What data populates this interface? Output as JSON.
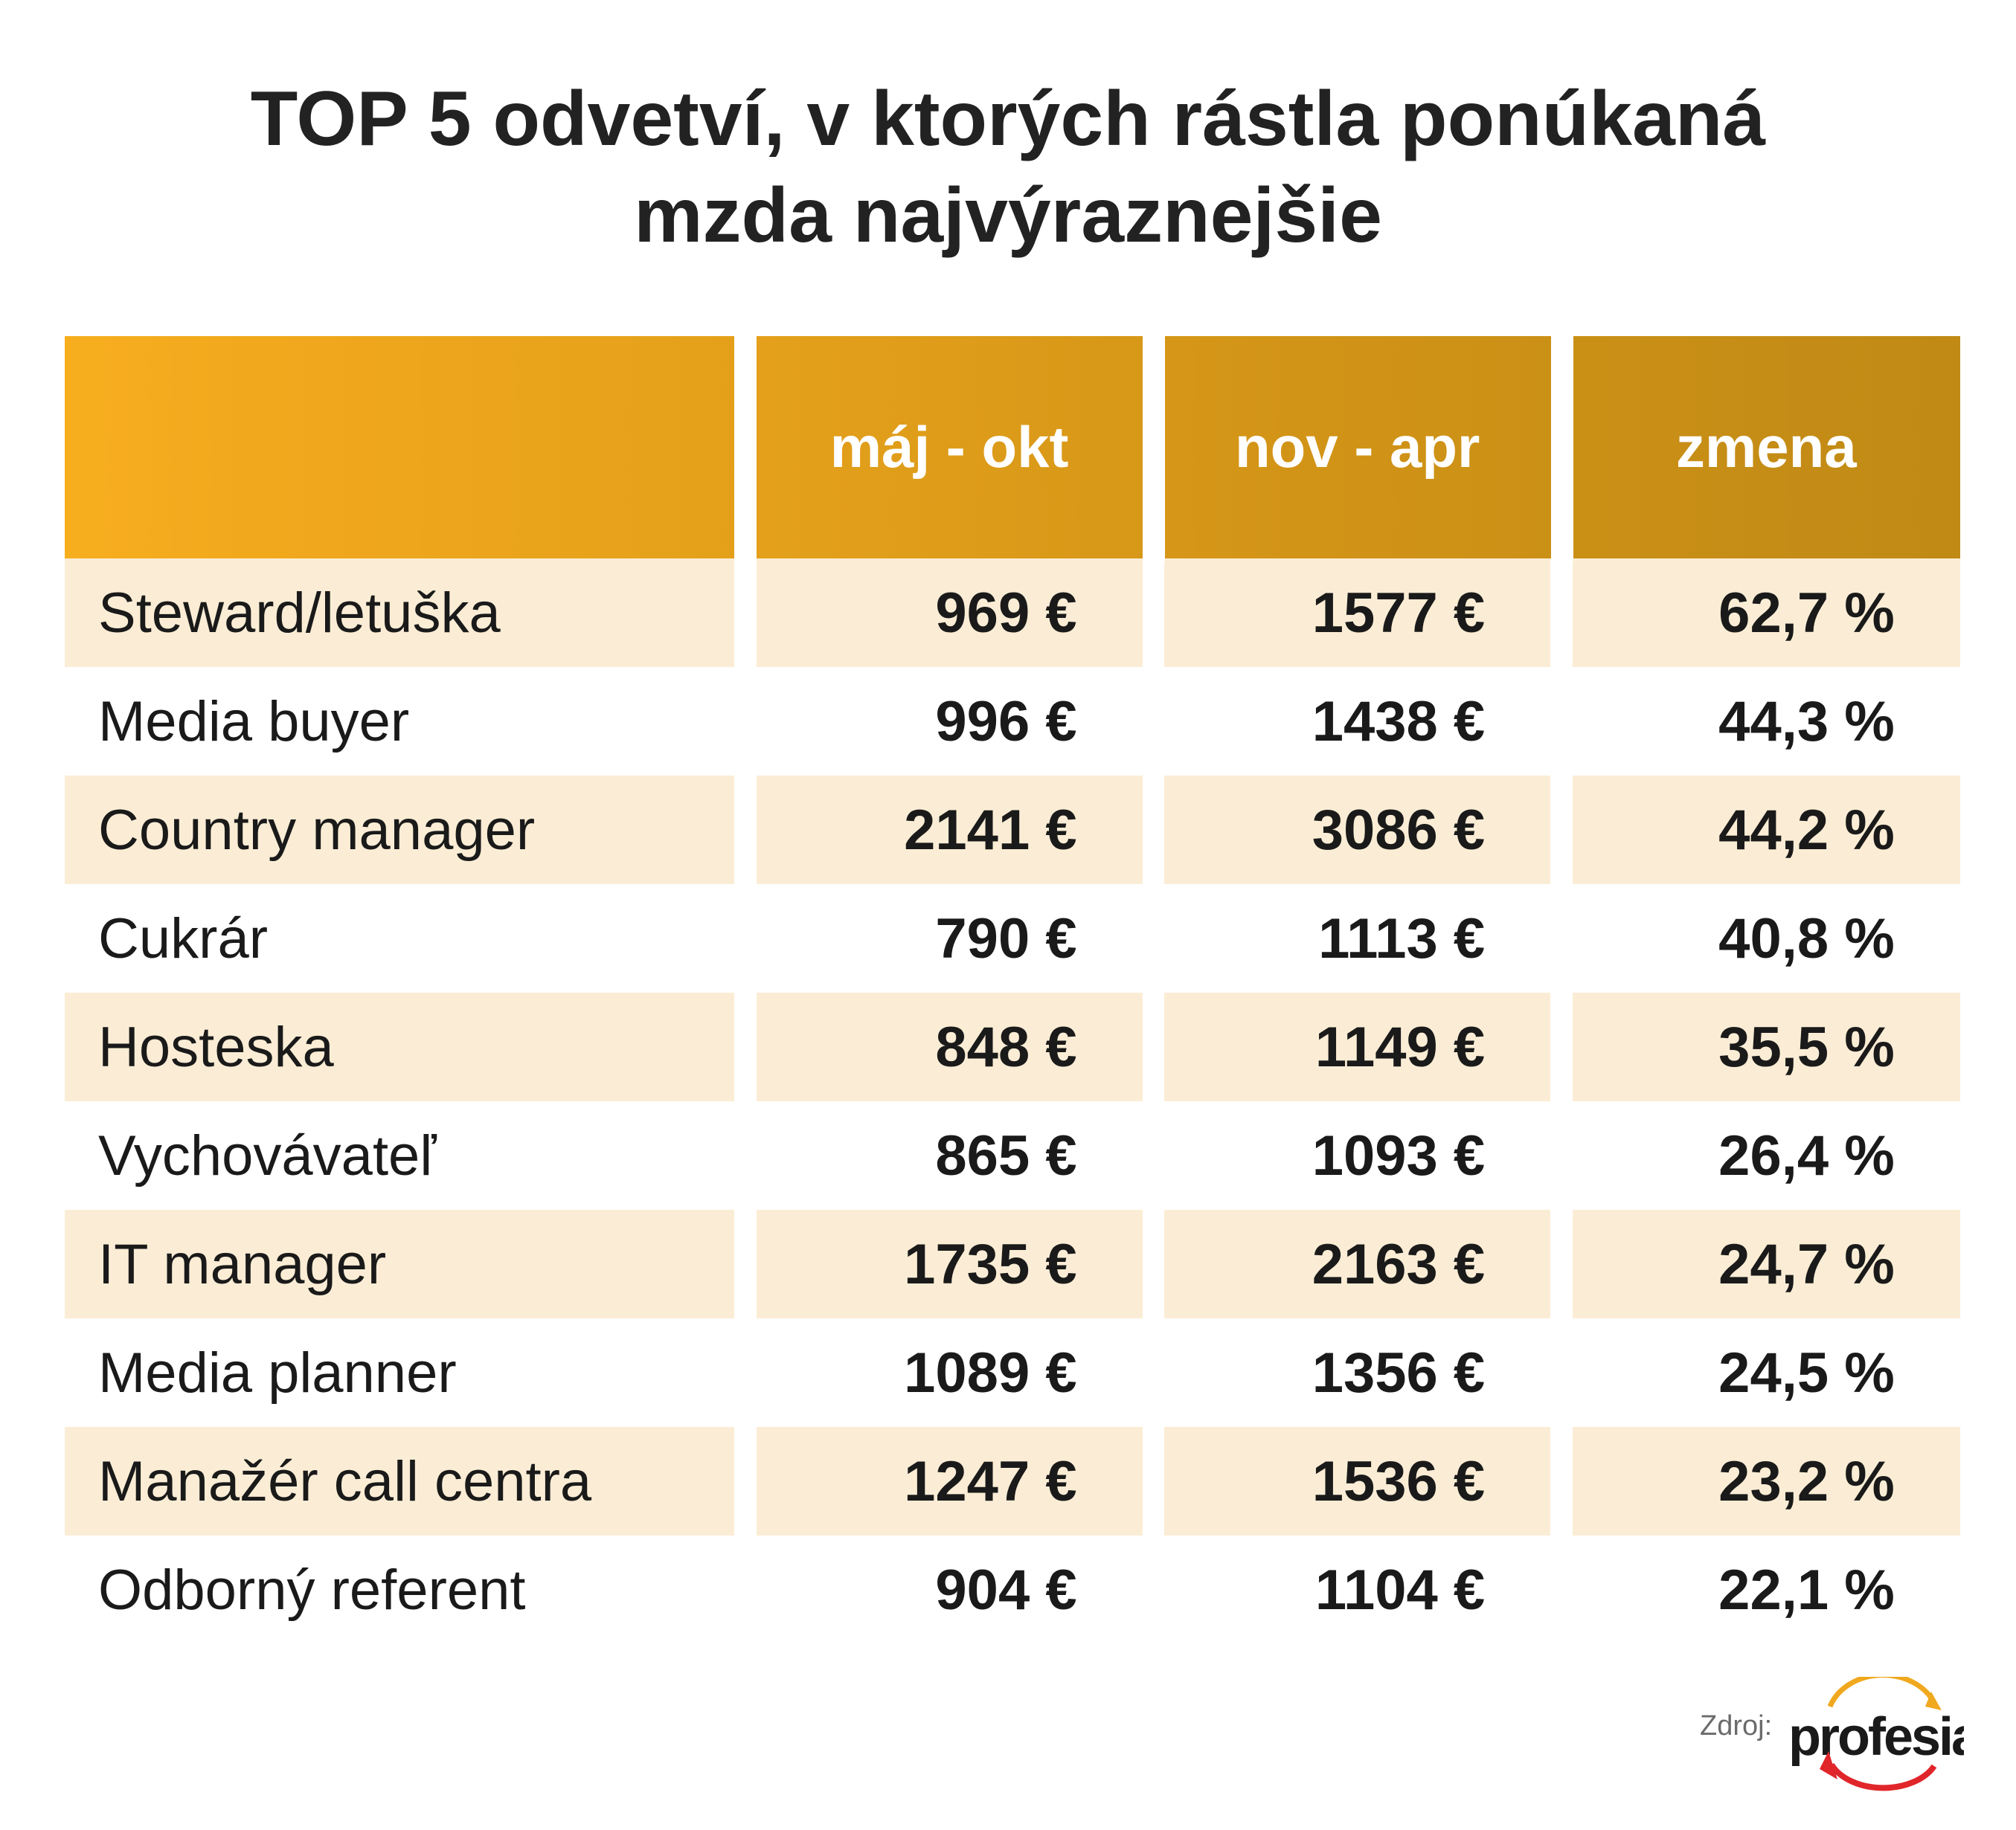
{
  "title_line1": "TOP 5 odvetví, v ktorých rástla ponúkaná",
  "title_line2": "mzda najvýraznejšie",
  "headers": [
    "",
    "máj - okt",
    "nov - apr",
    "zmena"
  ],
  "rows": [
    {
      "name": "Steward/letuška",
      "may_oct": "969 €",
      "nov_apr": "1577 €",
      "change": "62,7 %"
    },
    {
      "name": "Media buyer",
      "may_oct": "996 €",
      "nov_apr": "1438 €",
      "change": "44,3 %"
    },
    {
      "name": "Country manager",
      "may_oct": "2141 €",
      "nov_apr": "3086 €",
      "change": "44,2 %"
    },
    {
      "name": "Cukrár",
      "may_oct": "790 €",
      "nov_apr": "1113 €",
      "change": "40,8 %"
    },
    {
      "name": "Hosteska",
      "may_oct": "848 €",
      "nov_apr": "1149 €",
      "change": "35,5 %"
    },
    {
      "name": "Vychovávateľ",
      "may_oct": "865 €",
      "nov_apr": "1093 €",
      "change": "26,4 %"
    },
    {
      "name": "IT manager",
      "may_oct": "1735 €",
      "nov_apr": "2163 €",
      "change": "24,7 %"
    },
    {
      "name": "Media planner",
      "may_oct": "1089 €",
      "nov_apr": "1356 €",
      "change": "24,5 %"
    },
    {
      "name": "Manažér call centra",
      "may_oct": "1247 €",
      "nov_apr": "1536 €",
      "change": "23,2 %"
    },
    {
      "name": "Odborný referent",
      "may_oct": "904 €",
      "nov_apr": "1104 €",
      "change": "22,1 %"
    }
  ],
  "source_label": "Zdroj:",
  "logo_text": "profesia",
  "colors": {
    "header_left": "#F7AE1E",
    "header_right": "#C08A15",
    "stripe": "#FBEDD5",
    "logo_orange": "#F0A81E",
    "logo_red": "#E0262B"
  }
}
